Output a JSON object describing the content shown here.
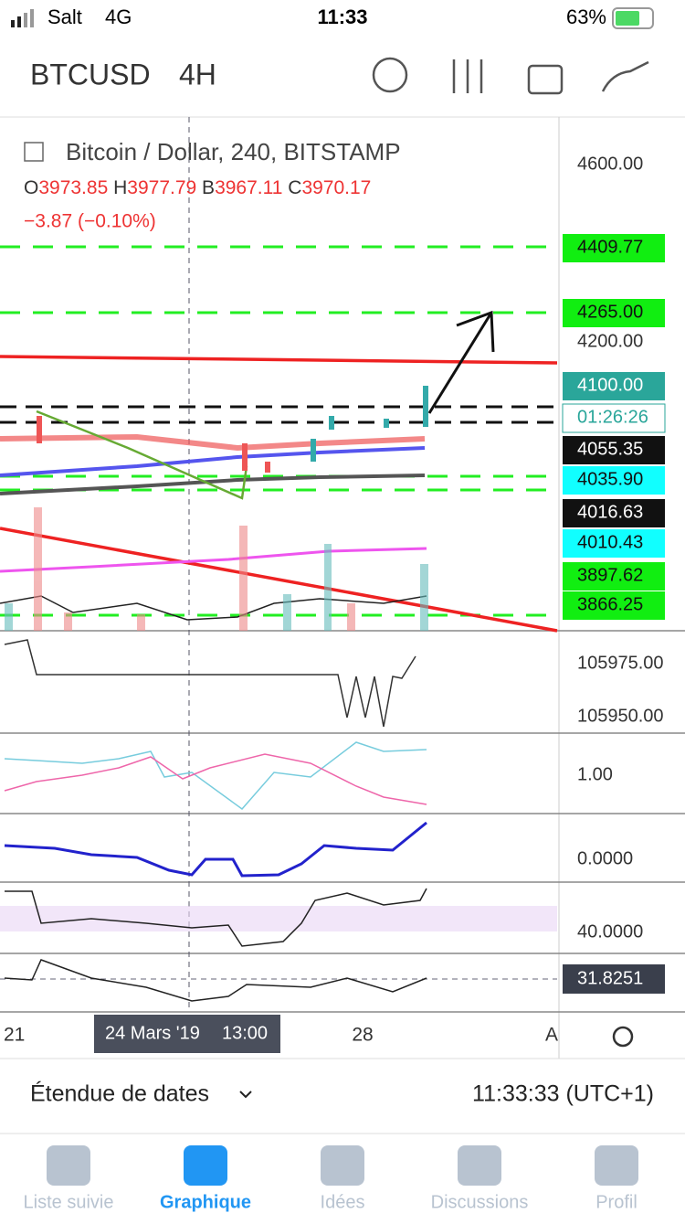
{
  "status_bar": {
    "carrier": "Salt",
    "network": "4G",
    "time": "11:33",
    "battery": "63%"
  },
  "header": {
    "symbol": "BTCUSD",
    "interval": "4H"
  },
  "legend": {
    "title": "Bitcoin / Dollar, 240, BITSTAMP",
    "open_label": "O",
    "open": "3973.85",
    "high_label": "H",
    "high": "3977.79",
    "low_label": "B",
    "low": "3967.11",
    "close_label": "C",
    "close": "3970.17",
    "change": "−3.87 (−0.10%)"
  },
  "price_axis": [
    "4600.00",
    "4409.77",
    "4265.00",
    "4200.00",
    "4100.00",
    "01:26:26",
    "4055.35",
    "4035.90",
    "4016.63",
    "4010.43",
    "3897.62",
    "3866.25"
  ],
  "indicator_axes": [
    "105975.00",
    "105950.00",
    "1.00",
    "0.0000",
    "40.0000",
    "31.8251"
  ],
  "time_axis": {
    "left": "21",
    "cursor_date": "24 Mars '19",
    "cursor_time": "13:00",
    "mid": "28",
    "right": "A"
  },
  "footer": {
    "date_range": "Étendue de dates",
    "clock": "11:33:33 (UTC+1)"
  },
  "tabs": [
    "Liste suivie",
    "Graphique",
    "Idées",
    "Discussions",
    "Profil"
  ]
}
